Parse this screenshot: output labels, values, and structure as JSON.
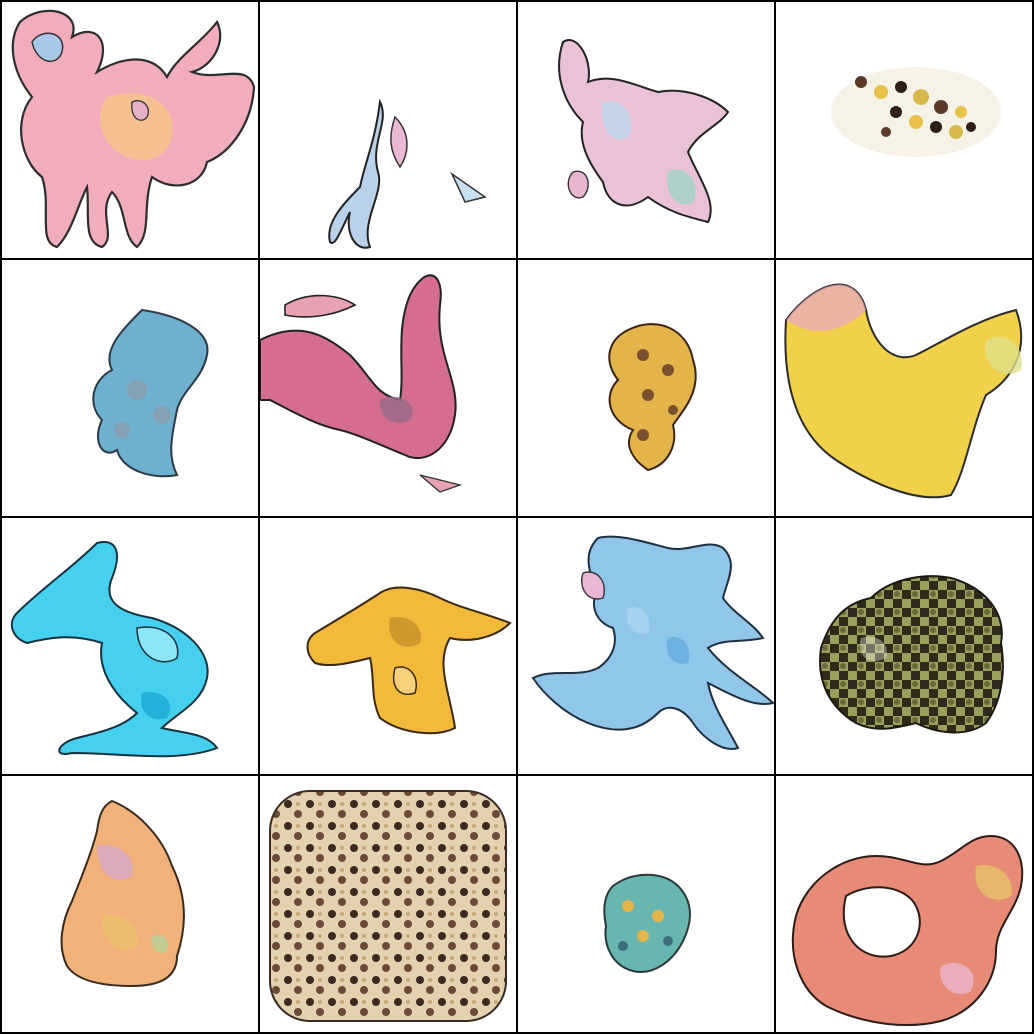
{
  "grid": {
    "rows": 4,
    "columns": 4
  },
  "tiles": [
    {
      "palette": [
        "#f2a9b9",
        "#f7c982",
        "#e7b0c9",
        "#a9c7e8"
      ],
      "pattern": "blob"
    },
    {
      "palette": [
        "#b9d2ea",
        "#e9b8d4",
        "#c8e1f0",
        "#f0d3e4"
      ],
      "pattern": "blob"
    },
    {
      "palette": [
        "#bcd7ee",
        "#e9b5cf",
        "#9fd3c4",
        "#e9c2d8"
      ],
      "pattern": "blob"
    },
    {
      "palette": [
        "#e8c04a",
        "#5b3a2a",
        "#d9b84b",
        "#2e1e18"
      ],
      "pattern": "speckle"
    },
    {
      "palette": [
        "#6fb0d0",
        "#5ea9c6",
        "#8e9aa8",
        "#4c8fb0"
      ],
      "pattern": "speckle"
    },
    {
      "palette": [
        "#d56e8e",
        "#c64d7b",
        "#e7a1b3",
        "#9a6a8a"
      ],
      "pattern": "blob"
    },
    {
      "palette": [
        "#e3b44a",
        "#7a4f2e",
        "#d8983e",
        "#3a2416"
      ],
      "pattern": "speckle"
    },
    {
      "palette": [
        "#f1d04a",
        "#eab94b",
        "#dfe08a",
        "#e7a6c8"
      ],
      "pattern": "blob"
    },
    {
      "palette": [
        "#46d0ef",
        "#2fc6ea",
        "#8be6f7",
        "#1aa9d4"
      ],
      "pattern": "blob"
    },
    {
      "palette": [
        "#f2b93b",
        "#e9a12e",
        "#f6d07a",
        "#c8922a"
      ],
      "pattern": "blob"
    },
    {
      "palette": [
        "#8fc6ea",
        "#a8d3f1",
        "#e9b6d6",
        "#6aaedf"
      ],
      "pattern": "blob"
    },
    {
      "palette": [
        "#2f2a1b",
        "#6b6a3a",
        "#9aa05a",
        "#1e1a12"
      ],
      "pattern": "checker"
    },
    {
      "palette": [
        "#f0b27a",
        "#e8c06a",
        "#d7a8c8",
        "#b8d19a"
      ],
      "pattern": "blob"
    },
    {
      "palette": [
        "#3a2a22",
        "#c8a97a",
        "#6b4a3a",
        "#e3d2b0"
      ],
      "pattern": "checker"
    },
    {
      "palette": [
        "#67b7b0",
        "#e7b44a",
        "#3c6e7a",
        "#d6d36b"
      ],
      "pattern": "speckle"
    },
    {
      "palette": [
        "#e78a76",
        "#f2a37a",
        "#e7b2c9",
        "#e4c06a"
      ],
      "pattern": "blob"
    }
  ]
}
